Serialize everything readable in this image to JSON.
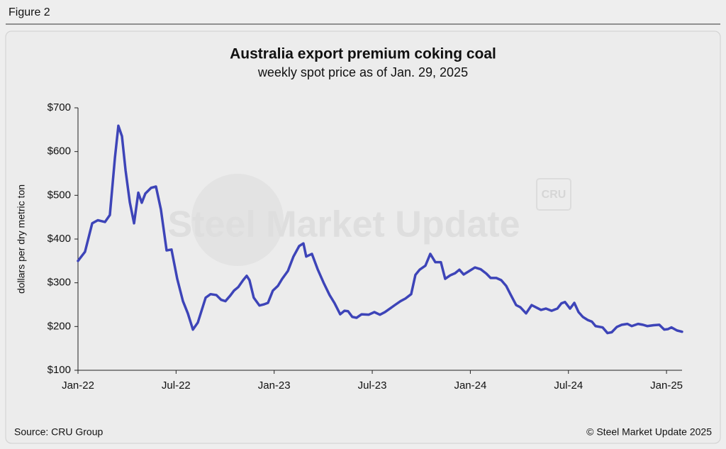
{
  "figure_label": "Figure 2",
  "source": "Source: CRU Group",
  "copyright": "© Steel Market Update 2025",
  "watermark": "Steel Market Update",
  "watermark_badge": "CRU",
  "chart_data": {
    "type": "line",
    "title": "Australia export premium coking coal",
    "subtitle": "weekly spot price as of Jan. 29, 2025",
    "y_label": "dollars per dry metric ton",
    "color": "#3d44b8",
    "x": [
      0,
      0.43,
      0.87,
      1.21,
      1.65,
      1.95,
      2.26,
      2.47,
      2.69,
      2.91,
      3.17,
      3.43,
      3.69,
      3.9,
      4.12,
      4.47,
      4.77,
      5.07,
      5.42,
      5.72,
      6.07,
      6.42,
      6.72,
      7.03,
      7.33,
      7.81,
      8.11,
      8.46,
      8.76,
      9.02,
      9.32,
      9.54,
      9.8,
      10.1,
      10.32,
      10.49,
      10.75,
      11.1,
      11.4,
      11.62,
      11.92,
      12.23,
      12.49,
      12.84,
      13.18,
      13.53,
      13.79,
      13.96,
      14.31,
      14.66,
      15.05,
      15.39,
      15.7,
      16.04,
      16.3,
      16.52,
      16.78,
      17.04,
      17.35,
      17.78,
      18.13,
      18.47,
      18.78,
      19.08,
      19.38,
      19.73,
      20.03,
      20.38,
      20.64,
      20.9,
      21.25,
      21.55,
      21.86,
      22.2,
      22.46,
      22.77,
      23.07,
      23.33,
      23.59,
      23.94,
      24.28,
      24.63,
      24.98,
      25.24,
      25.59,
      25.89,
      26.19,
      26.45,
      26.8,
      27.06,
      27.41,
      27.75,
      28.06,
      28.32,
      28.62,
      28.97,
      29.32,
      29.57,
      29.79,
      30.1,
      30.36,
      30.62,
      30.88,
      31.18,
      31.44,
      31.66,
      32.09,
      32.39,
      32.65,
      32.96,
      33.26,
      33.61,
      33.87,
      34.26,
      34.56,
      34.82,
      35.21,
      35.56,
      35.86,
      36.08,
      36.3,
      36.64,
      36.95
    ],
    "values": [
      350,
      371,
      436,
      443,
      439,
      455,
      586,
      659,
      635,
      557,
      484,
      436,
      506,
      483,
      504,
      517,
      520,
      468,
      374,
      376,
      309,
      258,
      230,
      193,
      209,
      266,
      274,
      272,
      261,
      258,
      271,
      282,
      290,
      306,
      316,
      306,
      266,
      248,
      251,
      254,
      282,
      293,
      309,
      327,
      360,
      384,
      390,
      360,
      366,
      331,
      298,
      272,
      253,
      228,
      236,
      235,
      222,
      220,
      228,
      227,
      233,
      227,
      233,
      241,
      249,
      258,
      264,
      274,
      318,
      330,
      339,
      366,
      347,
      347,
      309,
      317,
      322,
      330,
      319,
      327,
      335,
      331,
      321,
      311,
      311,
      306,
      293,
      274,
      249,
      244,
      230,
      249,
      243,
      238,
      241,
      236,
      241,
      253,
      256,
      241,
      254,
      233,
      222,
      215,
      211,
      201,
      198,
      185,
      187,
      199,
      204,
      206,
      201,
      206,
      204,
      201,
      203,
      204,
      193,
      194,
      198,
      191,
      188
    ],
    "xlim": [
      0,
      36.95
    ],
    "xticks": [
      {
        "value": 0,
        "label": "Jan-22"
      },
      {
        "value": 6,
        "label": "Jul-22"
      },
      {
        "value": 12,
        "label": "Jan-23"
      },
      {
        "value": 18,
        "label": "Jul-23"
      },
      {
        "value": 24,
        "label": "Jan-24"
      },
      {
        "value": 30,
        "label": "Jul-24"
      },
      {
        "value": 36,
        "label": "Jan-25"
      }
    ],
    "ylim": [
      100,
      700
    ],
    "yticks": [
      {
        "value": 100,
        "label": "$100"
      },
      {
        "value": 200,
        "label": "$200"
      },
      {
        "value": 300,
        "label": "$300"
      },
      {
        "value": 400,
        "label": "$400"
      },
      {
        "value": 500,
        "label": "$500"
      },
      {
        "value": 600,
        "label": "$600"
      },
      {
        "value": 700,
        "label": "$700"
      }
    ],
    "grid": false
  }
}
